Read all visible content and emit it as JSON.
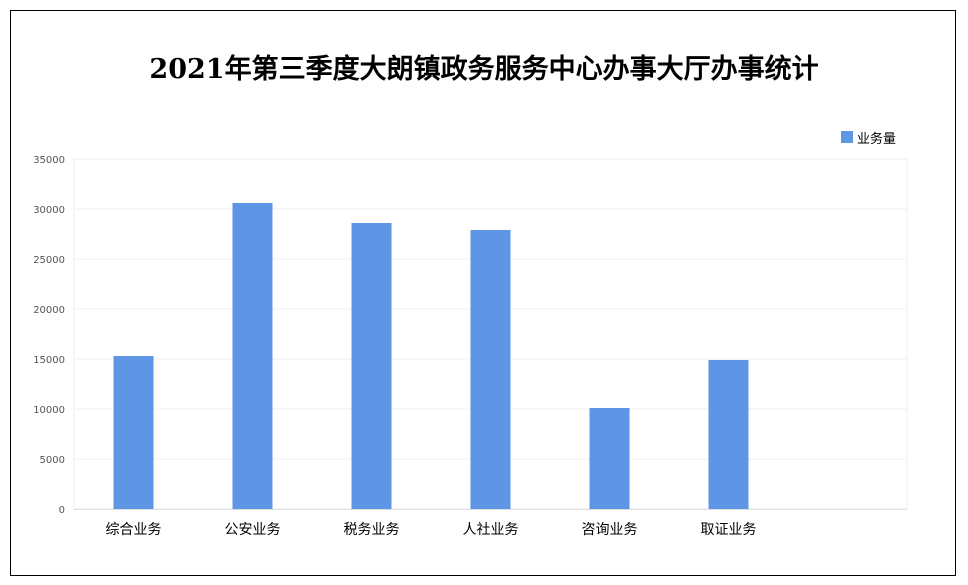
{
  "chart_data": {
    "type": "bar",
    "title": "2021年第三季度大朗镇政务服务中心办事大厅办事统计",
    "xlabel": "",
    "ylabel": "",
    "categories": [
      "综合业务",
      "公安业务",
      "税务业务",
      "人社业务",
      "咨询业务",
      "取证业务"
    ],
    "series": [
      {
        "name": "业务量",
        "values": [
          15300,
          30600,
          28600,
          27900,
          10100,
          14900
        ],
        "color": "#5e95e5"
      }
    ],
    "ylim": [
      0,
      35000
    ],
    "yticks": [
      "0",
      "5000",
      "10000",
      "15000",
      "20000",
      "25000",
      "30000",
      "35000"
    ],
    "grid": true,
    "legend_position": "top-right"
  }
}
